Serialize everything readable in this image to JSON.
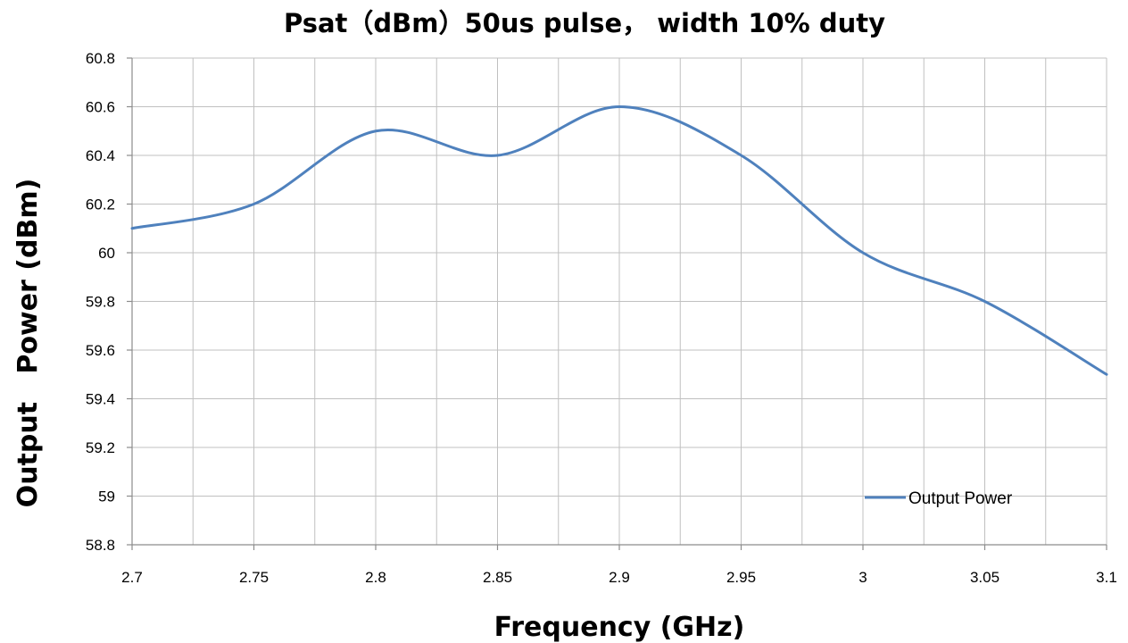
{
  "chart_data": {
    "type": "line",
    "title": "Psat（dBm）50us pulse， width 10% duty",
    "xlabel": "Frequency (GHz)",
    "ylabel": "Output   Power (dBm)",
    "x_ticks": [
      "2.7",
      "2.75",
      "2.8",
      "2.85",
      "2.9",
      "2.95",
      "3",
      "3.05",
      "3.1"
    ],
    "y_ticks": [
      "58.8",
      "59",
      "59.2",
      "59.4",
      "59.6",
      "59.8",
      "60",
      "60.2",
      "60.4",
      "60.6",
      "60.8"
    ],
    "xlim": [
      2.7,
      3.1
    ],
    "ylim": [
      58.8,
      60.8
    ],
    "grid": true,
    "smooth": true,
    "legend_position": "bottom-right",
    "series": [
      {
        "name": "Output Power",
        "color": "#4f81bd",
        "x": [
          2.7,
          2.75,
          2.8,
          2.85,
          2.9,
          2.95,
          3.0,
          3.05,
          3.1
        ],
        "y": [
          60.1,
          60.2,
          60.5,
          60.4,
          60.6,
          60.4,
          60.0,
          59.8,
          59.5
        ]
      }
    ]
  }
}
